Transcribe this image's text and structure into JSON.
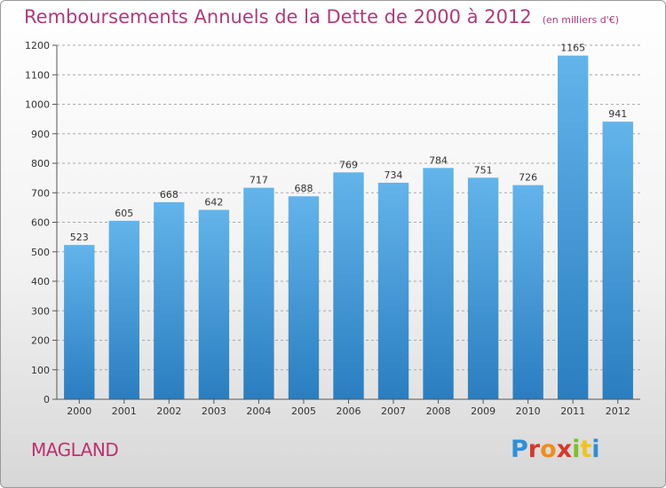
{
  "title": "Remboursements Annuels de la Dette de 2000 à 2012",
  "unit": "(en milliers d'€)",
  "commune": "MAGLAND",
  "logo": {
    "letters": [
      "P",
      "r",
      "o",
      "x",
      "i",
      "t",
      "i"
    ],
    "colors": [
      "#2f8fd6",
      "#d9362a",
      "#f28c1b",
      "#d9362a",
      "#7cbf2a",
      "#f2c21b",
      "#2f8fd6"
    ]
  },
  "colors": {
    "bar_top": "#62b4ea",
    "bar_bottom": "#2a7ec0",
    "title": "#b03a7a"
  },
  "chart_data": {
    "type": "bar",
    "categories": [
      "2000",
      "2001",
      "2002",
      "2003",
      "2004",
      "2005",
      "2006",
      "2007",
      "2008",
      "2009",
      "2010",
      "2011",
      "2012"
    ],
    "values": [
      523,
      605,
      668,
      642,
      717,
      688,
      769,
      734,
      784,
      751,
      726,
      1165,
      941
    ],
    "ylim": [
      0,
      1200
    ],
    "yticks": [
      0,
      100,
      200,
      300,
      400,
      500,
      600,
      700,
      800,
      900,
      1000,
      1100,
      1200
    ],
    "grid": true
  }
}
